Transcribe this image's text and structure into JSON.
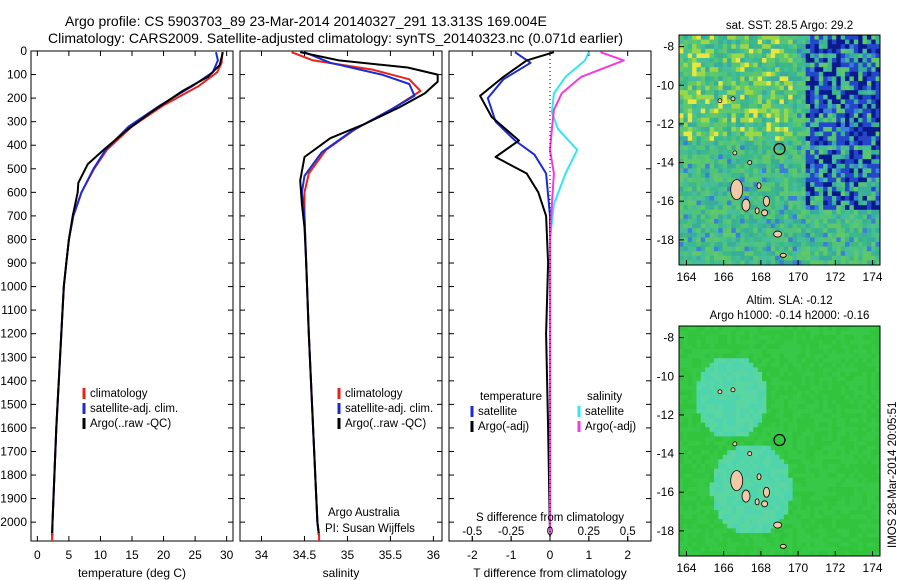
{
  "header": {
    "line1": "Argo profile: CS 5903703_89 23-Mar-2014 20140327_291 13.313S 169.004E",
    "line2": "Climatology: CARS2009. Satellite-adjusted climatology: synTS_20140323.nc (0.071d earlier)"
  },
  "colors": {
    "climatology": "#e8231a",
    "satellite": "#1a2bd6",
    "argo": "#000000",
    "sal_satellite": "#33e6f0",
    "sal_argo": "#f03cdc"
  },
  "annotations": {
    "agency": "Argo Australia",
    "pi": "PI: Susan Wijffels",
    "stamp": "IMOS 28-Mar-2014 20:05:51"
  },
  "chart_data": [
    {
      "type": "line",
      "id": "temperature",
      "xlabel": "temperature (deg C)",
      "ylabel": "",
      "xlim": [
        -1,
        31
      ],
      "ylim": [
        2080,
        0
      ],
      "xticks": [
        0,
        5,
        10,
        15,
        20,
        25,
        30
      ],
      "yticks": [
        0,
        100,
        200,
        300,
        400,
        500,
        600,
        700,
        800,
        900,
        1000,
        1100,
        1200,
        1300,
        1400,
        1500,
        1600,
        1700,
        1800,
        1900,
        2000
      ],
      "legend": [
        "climatology",
        "satellite-adj. clim.",
        "Argo(..raw -QC)"
      ],
      "legend_position": "lower-middle",
      "series": [
        {
          "name": "climatology",
          "color": "#e8231a",
          "points": [
            [
              29.3,
              5
            ],
            [
              29.2,
              50
            ],
            [
              28.5,
              90
            ],
            [
              25.5,
              150
            ],
            [
              20,
              230
            ],
            [
              15,
              320
            ],
            [
              11,
              420
            ],
            [
              9,
              500
            ],
            [
              7,
              600
            ],
            [
              5.7,
              700
            ],
            [
              5,
              800
            ],
            [
              4.6,
              900
            ],
            [
              4.2,
              1000
            ],
            [
              3.8,
              1200
            ],
            [
              3.4,
              1400
            ],
            [
              3.0,
              1600
            ],
            [
              2.7,
              1800
            ],
            [
              2.4,
              2000
            ],
            [
              2.35,
              2060
            ]
          ]
        },
        {
          "name": "satellite-adj. clim.",
          "color": "#1a2bd6",
          "points": [
            [
              28.3,
              5
            ],
            [
              28.6,
              40
            ],
            [
              27.8,
              90
            ],
            [
              24.5,
              150
            ],
            [
              19.5,
              230
            ],
            [
              14.5,
              320
            ],
            [
              10.8,
              420
            ],
            [
              8.9,
              500
            ],
            [
              7,
              600
            ],
            [
              5.7,
              700
            ],
            [
              5,
              800
            ],
            [
              4.6,
              900
            ],
            [
              4.2,
              1000
            ],
            [
              3.8,
              1200
            ],
            [
              3.4,
              1400
            ],
            [
              3.0,
              1600
            ],
            [
              2.7,
              1800
            ],
            [
              2.4,
              2000
            ],
            [
              2.35,
              2060
            ]
          ]
        },
        {
          "name": "Argo(..raw -QC)",
          "color": "#000000",
          "points": [
            [
              29.4,
              5
            ],
            [
              28.9,
              60
            ],
            [
              27,
              110
            ],
            [
              23,
              170
            ],
            [
              18,
              260
            ],
            [
              14,
              340
            ],
            [
              10.5,
              420
            ],
            [
              8,
              480
            ],
            [
              6.5,
              560
            ],
            [
              6.4,
              600
            ],
            [
              5.6,
              700
            ],
            [
              5,
              800
            ],
            [
              4.6,
              900
            ],
            [
              4.2,
              1000
            ],
            [
              3.8,
              1200
            ],
            [
              3.4,
              1400
            ],
            [
              3.0,
              1600
            ],
            [
              2.7,
              1800
            ],
            [
              2.4,
              2000
            ],
            [
              2.35,
              2060
            ]
          ]
        }
      ]
    },
    {
      "type": "line",
      "id": "salinity",
      "xlabel": "salinity",
      "xlim": [
        33.75,
        36.1
      ],
      "ylim": [
        2080,
        0
      ],
      "xticks": [
        34,
        34.5,
        35,
        35.5,
        36
      ],
      "xtick_labels": [
        "34",
        "34.5",
        "35",
        "35.5",
        "36"
      ],
      "legend": [
        "climatology",
        "satellite-adj. clim.",
        "Argo(..raw -QC)"
      ],
      "legend_position": "lower-middle",
      "series": [
        {
          "name": "climatology",
          "color": "#e8231a",
          "points": [
            [
              34.35,
              5
            ],
            [
              34.6,
              40
            ],
            [
              35.3,
              80
            ],
            [
              35.72,
              120
            ],
            [
              35.85,
              170
            ],
            [
              35.55,
              240
            ],
            [
              35.1,
              330
            ],
            [
              34.75,
              420
            ],
            [
              34.55,
              520
            ],
            [
              34.5,
              600
            ],
            [
              34.5,
              700
            ],
            [
              34.52,
              900
            ],
            [
              34.55,
              1200
            ],
            [
              34.6,
              1600
            ],
            [
              34.65,
              2000
            ],
            [
              34.67,
              2060
            ]
          ]
        },
        {
          "name": "satellite-adj. clim.",
          "color": "#1a2bd6",
          "points": [
            [
              34.5,
              5
            ],
            [
              34.8,
              50
            ],
            [
              35.4,
              100
            ],
            [
              35.72,
              140
            ],
            [
              35.78,
              190
            ],
            [
              35.5,
              250
            ],
            [
              35.05,
              340
            ],
            [
              34.7,
              430
            ],
            [
              34.5,
              530
            ],
            [
              34.47,
              600
            ],
            [
              34.5,
              700
            ],
            [
              34.52,
              900
            ],
            [
              34.55,
              1200
            ],
            [
              34.6,
              1600
            ],
            [
              34.65,
              2000
            ],
            [
              34.67,
              2060
            ]
          ]
        },
        {
          "name": "Argo(..raw -QC)",
          "color": "#000000",
          "points": [
            [
              34.45,
              5
            ],
            [
              34.9,
              40
            ],
            [
              35.7,
              70
            ],
            [
              36.05,
              100
            ],
            [
              36.05,
              130
            ],
            [
              35.9,
              180
            ],
            [
              35.6,
              240
            ],
            [
              35.2,
              310
            ],
            [
              34.8,
              370
            ],
            [
              34.5,
              450
            ],
            [
              34.45,
              550
            ],
            [
              34.47,
              650
            ],
            [
              34.5,
              750
            ],
            [
              34.52,
              900
            ],
            [
              34.55,
              1200
            ],
            [
              34.6,
              1600
            ],
            [
              34.65,
              2000
            ],
            [
              34.67,
              2060
            ]
          ]
        }
      ]
    },
    {
      "type": "line",
      "id": "difference",
      "xlabel": "T difference from climatology",
      "xlabel2": "S difference from climatology",
      "xlim": [
        -2.6,
        2.6
      ],
      "ylim": [
        2080,
        0
      ],
      "xticks": [
        -2,
        -1,
        0,
        1,
        2
      ],
      "xticks_top": [
        -0.5,
        -0.25,
        0,
        0.25,
        0.5
      ],
      "legend_groups": [
        {
          "title": "temperature",
          "items": [
            "satellite",
            "Argo(-adj)"
          ]
        },
        {
          "title": "salinity",
          "items": [
            "satellite",
            "Argo(-adj)"
          ]
        }
      ],
      "series": [
        {
          "name": "temperature satellite",
          "color": "#1a2bd6",
          "points": [
            [
              -0.9,
              5
            ],
            [
              -0.5,
              50
            ],
            [
              -1.2,
              120
            ],
            [
              -1.6,
              200
            ],
            [
              -1.4,
              300
            ],
            [
              -0.9,
              380
            ],
            [
              -0.4,
              440
            ],
            [
              -0.1,
              520
            ],
            [
              0,
              700
            ],
            [
              0,
              2060
            ]
          ]
        },
        {
          "name": "temperature Argo(-adj)",
          "color": "#000000",
          "points": [
            [
              0.1,
              5
            ],
            [
              -0.6,
              40
            ],
            [
              -1.2,
              110
            ],
            [
              -1.8,
              190
            ],
            [
              -1.5,
              280
            ],
            [
              -0.8,
              380
            ],
            [
              -1.4,
              450
            ],
            [
              -0.6,
              520
            ],
            [
              -0.3,
              600
            ],
            [
              -0.1,
              700
            ],
            [
              -0.05,
              900
            ],
            [
              -0.1,
              1200
            ],
            [
              -0.05,
              1600
            ],
            [
              0,
              2060
            ]
          ]
        },
        {
          "name": "salinity satellite",
          "color": "#33e6f0",
          "points": [
            [
              1.0,
              5
            ],
            [
              0.9,
              40
            ],
            [
              0.4,
              110
            ],
            [
              0.1,
              180
            ],
            [
              0.05,
              260
            ],
            [
              0.2,
              330
            ],
            [
              0.7,
              420
            ],
            [
              0.4,
              520
            ],
            [
              0.1,
              650
            ],
            [
              0,
              800
            ],
            [
              0,
              2060
            ]
          ]
        },
        {
          "name": "salinity Argo(-adj)",
          "color": "#f03cdc",
          "points": [
            [
              1.3,
              5
            ],
            [
              1.9,
              40
            ],
            [
              0.8,
              110
            ],
            [
              0.3,
              180
            ],
            [
              0.1,
              250
            ],
            [
              0.05,
              330
            ],
            [
              0,
              420
            ],
            [
              0.1,
              520
            ],
            [
              0.05,
              650
            ],
            [
              0,
              800
            ],
            [
              0,
              2060
            ]
          ]
        }
      ]
    },
    {
      "type": "heatmap",
      "id": "sst_map",
      "title": "sat. SST: 28.5  Argo: 29.2",
      "xlim": [
        163.6,
        174.4
      ],
      "ylim": [
        -19.3,
        -7.4
      ],
      "xticks": [
        164,
        166,
        168,
        170,
        172,
        174
      ],
      "yticks": [
        -8,
        -10,
        -12,
        -14,
        -16,
        -18
      ],
      "marker": {
        "lon": 169.0,
        "lat": -13.3
      }
    },
    {
      "type": "heatmap",
      "id": "sla_map",
      "title": "Altim. SLA: -0.12",
      "subtitle": "Argo h1000: -0.14 h2000: -0.16",
      "xlim": [
        163.6,
        174.4
      ],
      "ylim": [
        -19.3,
        -7.4
      ],
      "xticks": [
        164,
        166,
        168,
        170,
        172,
        174
      ],
      "yticks": [
        -8,
        -10,
        -12,
        -14,
        -16,
        -18
      ],
      "marker": {
        "lon": 169.0,
        "lat": -13.3
      }
    }
  ]
}
